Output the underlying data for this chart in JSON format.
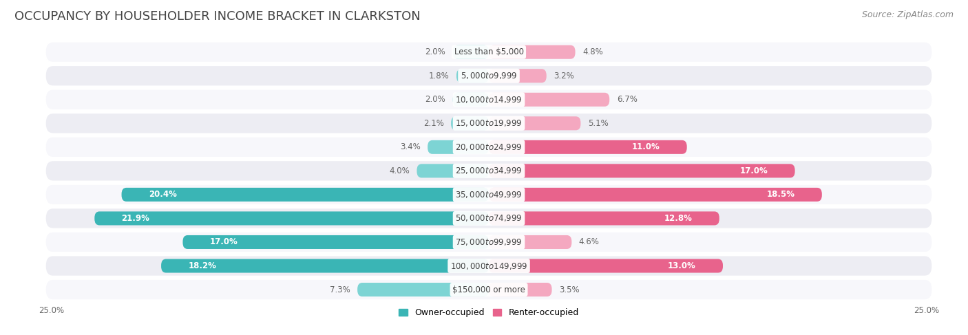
{
  "title": "OCCUPANCY BY HOUSEHOLDER INCOME BRACKET IN CLARKSTON",
  "source": "Source: ZipAtlas.com",
  "categories": [
    "Less than $5,000",
    "$5,000 to $9,999",
    "$10,000 to $14,999",
    "$15,000 to $19,999",
    "$20,000 to $24,999",
    "$25,000 to $34,999",
    "$35,000 to $49,999",
    "$50,000 to $74,999",
    "$75,000 to $99,999",
    "$100,000 to $149,999",
    "$150,000 or more"
  ],
  "owner_values": [
    2.0,
    1.8,
    2.0,
    2.1,
    3.4,
    4.0,
    20.4,
    21.9,
    17.0,
    18.2,
    7.3
  ],
  "renter_values": [
    4.8,
    3.2,
    6.7,
    5.1,
    11.0,
    17.0,
    18.5,
    12.8,
    4.6,
    13.0,
    3.5
  ],
  "owner_color_light": "#7dd4d4",
  "owner_color_dark": "#3ab5b5",
  "renter_color_light": "#f4a8c0",
  "renter_color_dark": "#e8638c",
  "row_bg_light": "#f7f7fb",
  "row_bg_dark": "#ededf3",
  "axis_limit": 25.0,
  "title_fontsize": 13,
  "source_fontsize": 9,
  "label_fontsize": 8.5,
  "category_fontsize": 8.5,
  "legend_fontsize": 9,
  "background_color": "#ffffff"
}
